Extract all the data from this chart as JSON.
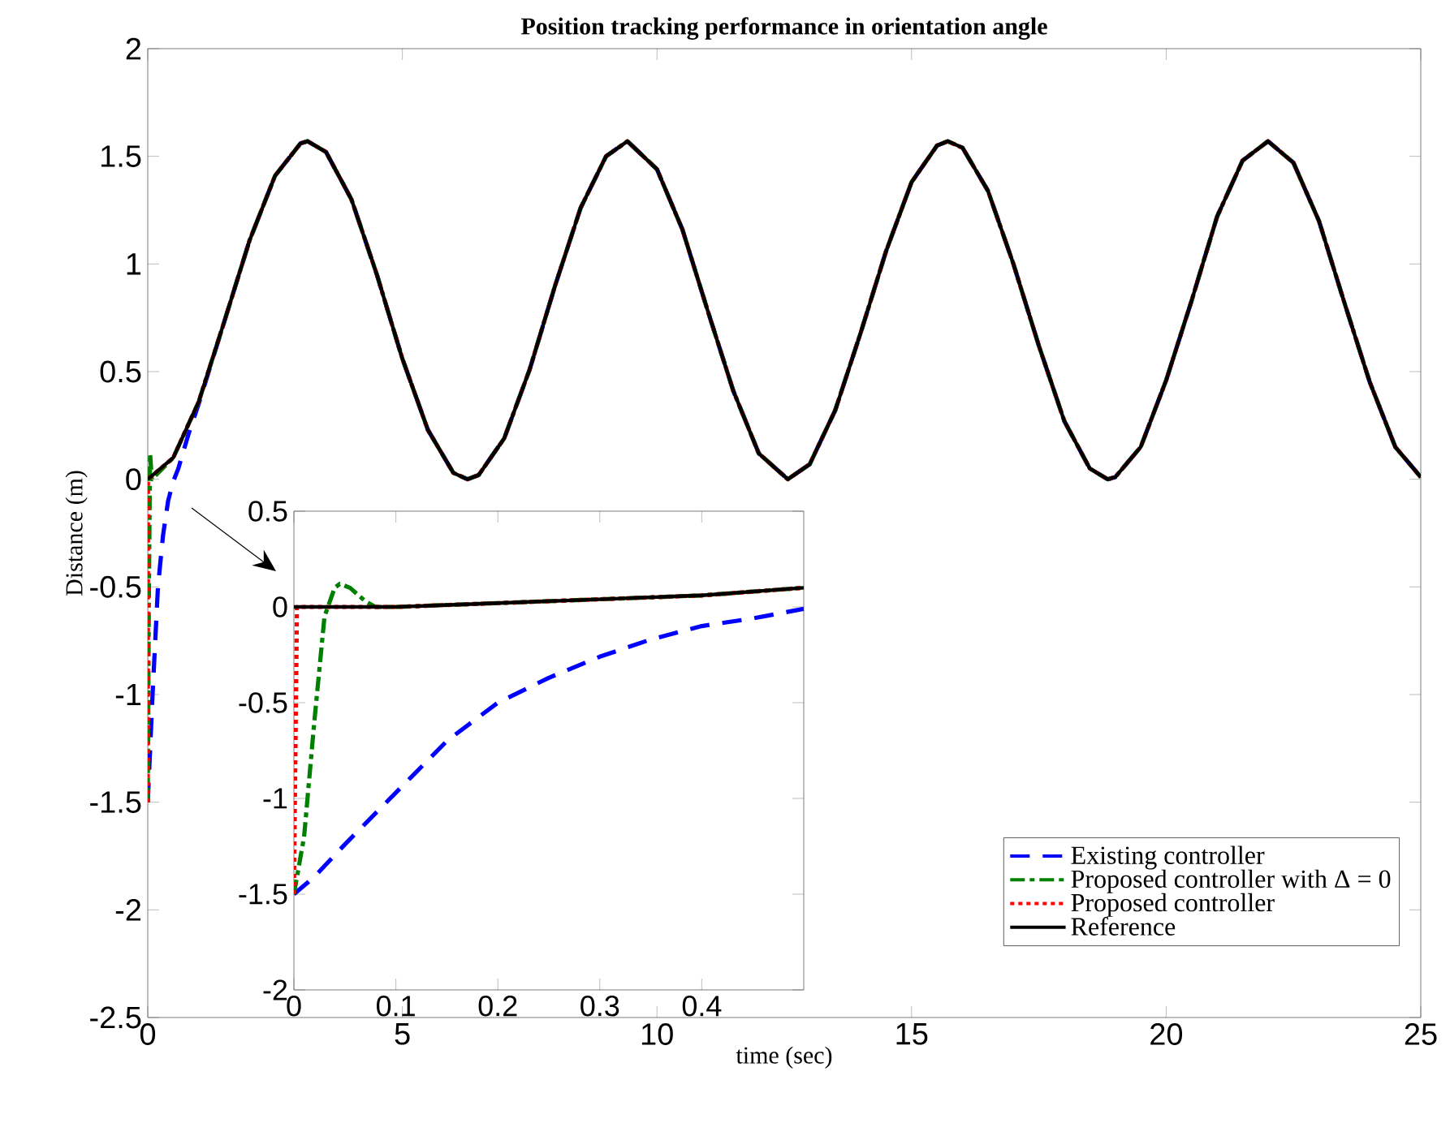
{
  "chart_data": [
    {
      "type": "line",
      "title": "Position tracking performance in orientation angle",
      "xlabel": "time (sec)",
      "ylabel": "Distance (m)",
      "xlim": [
        0,
        25
      ],
      "ylim": [
        -2.5,
        2
      ],
      "xticks": [
        0,
        5,
        10,
        15,
        20,
        25
      ],
      "yticks": [
        -2.5,
        -2,
        -1.5,
        -1,
        -0.5,
        0,
        0.5,
        1,
        1.5,
        2
      ],
      "legend": "bottom right",
      "grid": false,
      "series": [
        {
          "name": "Existing controller",
          "color": "#0000ff",
          "line_style": "dashed",
          "x": [
            0,
            0.1,
            0.2,
            0.3,
            0.4,
            0.5,
            0.6,
            0.7,
            0.8,
            1,
            1.5,
            2,
            2.5,
            3,
            3.14,
            3.5,
            4,
            4.5,
            5,
            5.5,
            6,
            6.28,
            6.5,
            7,
            7.5,
            8,
            8.5,
            9,
            9.42,
            10,
            10.5,
            11,
            11.5,
            12,
            12.57,
            13,
            13.5,
            14,
            14.5,
            15,
            15.5,
            15.71,
            16,
            16.5,
            17,
            17.5,
            18,
            18.5,
            18.85,
            19,
            19.5,
            20,
            20.5,
            21,
            21.5,
            22,
            22.5,
            23,
            23.5,
            24,
            24.5,
            25
          ],
          "values": [
            -1.5,
            -0.97,
            -0.5,
            -0.26,
            -0.1,
            -0.01,
            0.05,
            0.13,
            0.21,
            0.35,
            0.73,
            1.11,
            1.41,
            1.56,
            1.57,
            1.52,
            1.3,
            0.95,
            0.56,
            0.23,
            0.03,
            0,
            0.02,
            0.19,
            0.51,
            0.9,
            1.26,
            1.5,
            1.57,
            1.44,
            1.16,
            0.78,
            0.41,
            0.12,
            0,
            0.07,
            0.32,
            0.68,
            1.06,
            1.38,
            1.55,
            1.57,
            1.54,
            1.34,
            1.0,
            0.62,
            0.27,
            0.05,
            0,
            0.01,
            0.15,
            0.46,
            0.83,
            1.22,
            1.48,
            1.57,
            1.47,
            1.2,
            0.82,
            0.45,
            0.15,
            0.01
          ]
        },
        {
          "name": "Proposed controller with Δ = 0",
          "color": "#008000",
          "line_style": "dashdot",
          "x": [
            0,
            0.02,
            0.045,
            0.08,
            0.5,
            1,
            1.5,
            2,
            2.5,
            3,
            3.14,
            3.5,
            4,
            4.5,
            5,
            5.5,
            6,
            6.28,
            6.5,
            7,
            7.5,
            8,
            8.5,
            9,
            9.42,
            10,
            10.5,
            11,
            11.5,
            12,
            12.57,
            13,
            13.5,
            14,
            14.5,
            15,
            15.5,
            15.71,
            16,
            16.5,
            17,
            17.5,
            18,
            18.5,
            18.85,
            19,
            19.5,
            20,
            20.5,
            21,
            21.5,
            22,
            22.5,
            23,
            23.5,
            24,
            24.5,
            25
          ],
          "values": [
            -1.5,
            -0.6,
            0.12,
            0,
            0.1,
            0.36,
            0.73,
            1.11,
            1.41,
            1.56,
            1.57,
            1.52,
            1.3,
            0.95,
            0.56,
            0.23,
            0.03,
            0,
            0.02,
            0.19,
            0.51,
            0.9,
            1.26,
            1.5,
            1.57,
            1.44,
            1.16,
            0.78,
            0.41,
            0.12,
            0,
            0.07,
            0.32,
            0.68,
            1.06,
            1.38,
            1.55,
            1.57,
            1.54,
            1.34,
            1.0,
            0.62,
            0.27,
            0.05,
            0,
            0.01,
            0.15,
            0.46,
            0.83,
            1.22,
            1.48,
            1.57,
            1.47,
            1.2,
            0.82,
            0.45,
            0.15,
            0.01
          ]
        },
        {
          "name": "Proposed controller",
          "color": "#ff0000",
          "line_style": "dotted",
          "x": [
            0,
            0.003,
            0.5,
            1,
            1.5,
            2,
            2.5,
            3,
            3.14,
            3.5,
            4,
            4.5,
            5,
            5.5,
            6,
            6.28,
            6.5,
            7,
            7.5,
            8,
            8.5,
            9,
            9.42,
            10,
            10.5,
            11,
            11.5,
            12,
            12.57,
            13,
            13.5,
            14,
            14.5,
            15,
            15.5,
            15.71,
            16,
            16.5,
            17,
            17.5,
            18,
            18.5,
            18.85,
            19,
            19.5,
            20,
            20.5,
            21,
            21.5,
            22,
            22.5,
            23,
            23.5,
            24,
            24.5,
            25
          ],
          "values": [
            -1.5,
            0,
            0.1,
            0.36,
            0.73,
            1.11,
            1.41,
            1.56,
            1.57,
            1.52,
            1.3,
            0.95,
            0.56,
            0.23,
            0.03,
            0,
            0.02,
            0.19,
            0.51,
            0.9,
            1.26,
            1.5,
            1.57,
            1.44,
            1.16,
            0.78,
            0.41,
            0.12,
            0,
            0.07,
            0.32,
            0.68,
            1.06,
            1.38,
            1.55,
            1.57,
            1.54,
            1.34,
            1.0,
            0.62,
            0.27,
            0.05,
            0,
            0.01,
            0.15,
            0.46,
            0.83,
            1.22,
            1.48,
            1.57,
            1.47,
            1.2,
            0.82,
            0.45,
            0.15,
            0.01
          ]
        },
        {
          "name": "Reference",
          "color": "#000000",
          "line_style": "solid",
          "x": [
            0,
            0.5,
            1,
            1.5,
            2,
            2.5,
            3,
            3.14,
            3.5,
            4,
            4.5,
            5,
            5.5,
            6,
            6.28,
            6.5,
            7,
            7.5,
            8,
            8.5,
            9,
            9.42,
            10,
            10.5,
            11,
            11.5,
            12,
            12.57,
            13,
            13.5,
            14,
            14.5,
            15,
            15.5,
            15.71,
            16,
            16.5,
            17,
            17.5,
            18,
            18.5,
            18.85,
            19,
            19.5,
            20,
            20.5,
            21,
            21.5,
            22,
            22.5,
            23,
            23.5,
            24,
            24.5,
            25
          ],
          "values": [
            0,
            0.1,
            0.36,
            0.73,
            1.11,
            1.41,
            1.56,
            1.57,
            1.52,
            1.3,
            0.95,
            0.56,
            0.23,
            0.03,
            0,
            0.02,
            0.19,
            0.51,
            0.9,
            1.26,
            1.5,
            1.57,
            1.44,
            1.16,
            0.78,
            0.41,
            0.12,
            0,
            0.07,
            0.32,
            0.68,
            1.06,
            1.38,
            1.55,
            1.57,
            1.54,
            1.34,
            1.0,
            0.62,
            0.27,
            0.05,
            0,
            0.01,
            0.15,
            0.46,
            0.83,
            1.22,
            1.48,
            1.57,
            1.47,
            1.2,
            0.82,
            0.45,
            0.15,
            0.01
          ]
        }
      ]
    },
    {
      "type": "line",
      "xlim": [
        0,
        0.5
      ],
      "ylim": [
        -2,
        0.5
      ],
      "xticks": [
        0,
        0.1,
        0.2,
        0.3,
        0.4
      ],
      "yticks": [
        -2,
        -1.5,
        -1,
        -0.5,
        0,
        0.5
      ],
      "grid": false,
      "series": [
        {
          "color": "#0000ff",
          "line_style": "dashed",
          "x": [
            0,
            0.02,
            0.05,
            0.1,
            0.15,
            0.2,
            0.25,
            0.3,
            0.35,
            0.4,
            0.45,
            0.5
          ],
          "values": [
            -1.5,
            -1.41,
            -1.24,
            -0.97,
            -0.7,
            -0.5,
            -0.37,
            -0.26,
            -0.17,
            -0.1,
            -0.06,
            -0.01
          ]
        },
        {
          "color": "#008000",
          "line_style": "dashdot",
          "x": [
            0,
            0.01,
            0.02,
            0.03,
            0.04,
            0.045,
            0.055,
            0.07,
            0.08,
            0.1,
            0.2,
            0.3,
            0.4,
            0.5
          ],
          "values": [
            -1.5,
            -1.2,
            -0.6,
            -0.05,
            0.1,
            0.12,
            0.1,
            0.03,
            0,
            0,
            0.02,
            0.04,
            0.06,
            0.1
          ]
        },
        {
          "color": "#ff0000",
          "line_style": "dotted",
          "x": [
            0,
            0.003,
            0.1,
            0.2,
            0.3,
            0.4,
            0.5
          ],
          "values": [
            -1.5,
            0,
            0,
            0.02,
            0.04,
            0.06,
            0.1
          ]
        },
        {
          "color": "#000000",
          "line_style": "solid",
          "x": [
            0,
            0.1,
            0.2,
            0.3,
            0.4,
            0.5
          ],
          "values": [
            0,
            0,
            0.02,
            0.04,
            0.06,
            0.1
          ]
        }
      ]
    }
  ]
}
